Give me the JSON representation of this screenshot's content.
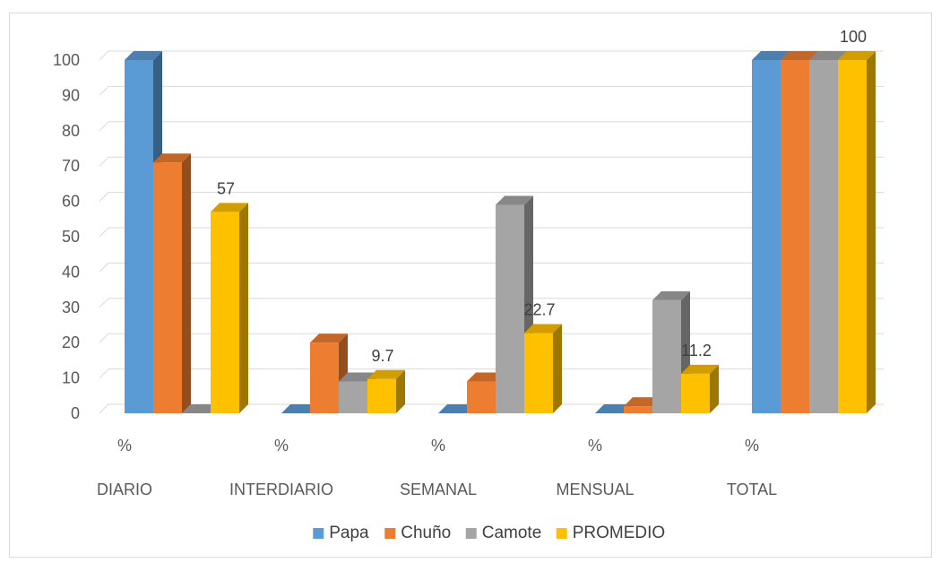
{
  "chart_data": {
    "type": "bar",
    "style": "3d-clustered-column",
    "categories": [
      "DIARIO",
      "INTERDIARIO",
      "SEMANAL",
      "MENSUAL",
      "TOTAL"
    ],
    "category_sublabel": "%",
    "series": [
      {
        "name": "Papa",
        "color": "#5b9bd5",
        "values": [
          100,
          0,
          0,
          0,
          100
        ]
      },
      {
        "name": "Chuño",
        "color": "#ed7d31",
        "values": [
          71,
          20,
          9,
          2,
          100
        ]
      },
      {
        "name": "Camote",
        "color": "#a5a5a5",
        "values": [
          0,
          9,
          59,
          32,
          100
        ]
      },
      {
        "name": "PROMEDIO",
        "color": "#ffc000",
        "values": [
          57,
          9.7,
          22.7,
          11.2,
          100
        ]
      }
    ],
    "data_labels": [
      {
        "series": "PROMEDIO",
        "category": "DIARIO",
        "text": "57"
      },
      {
        "series": "PROMEDIO",
        "category": "INTERDIARIO",
        "text": "9.7"
      },
      {
        "series": "PROMEDIO",
        "category": "SEMANAL",
        "text": "22.7"
      },
      {
        "series": "PROMEDIO",
        "category": "MENSUAL",
        "text": "11.2"
      },
      {
        "series": "PROMEDIO",
        "category": "TOTAL",
        "text": "100"
      }
    ],
    "ylim": [
      0,
      100
    ],
    "yticks": [
      0,
      10,
      20,
      30,
      40,
      50,
      60,
      70,
      80,
      90,
      100
    ],
    "grid": true,
    "legend_position": "bottom"
  }
}
